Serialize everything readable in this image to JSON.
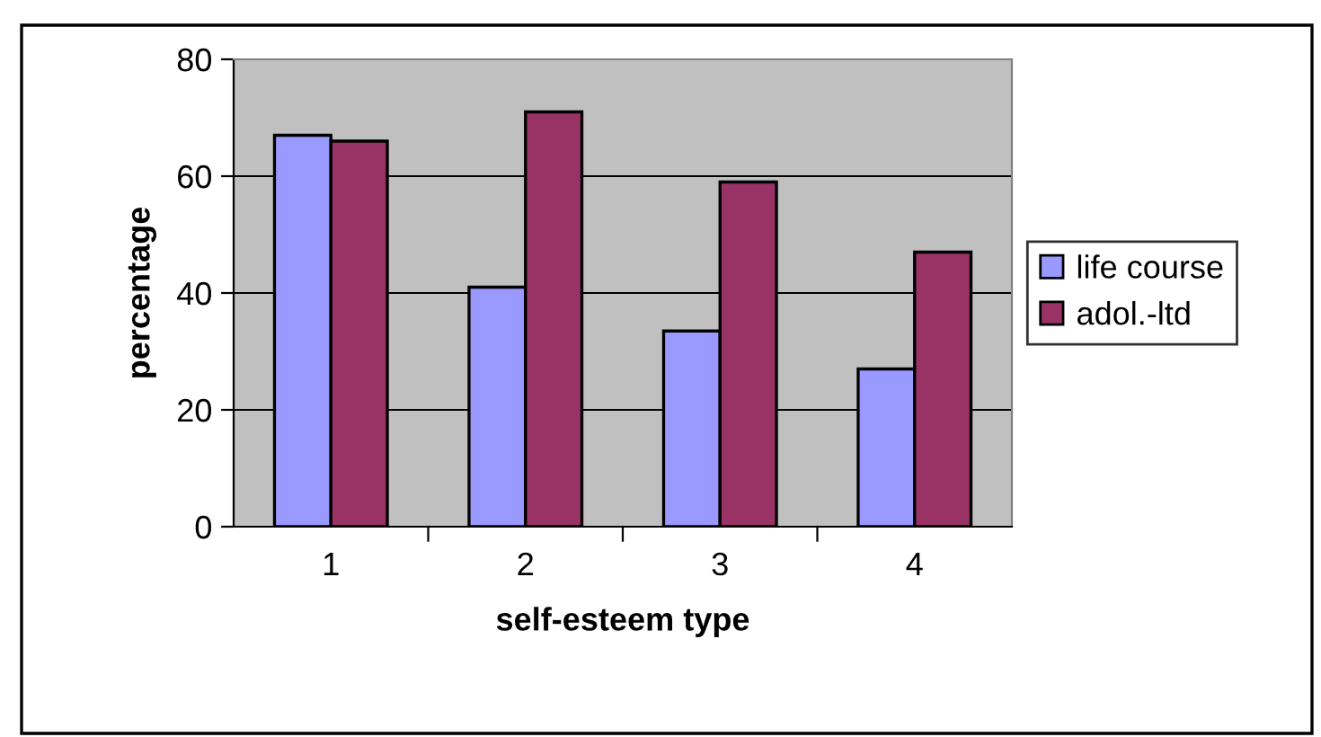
{
  "chart_data": {
    "type": "bar",
    "xlabel": "self-esteem type",
    "ylabel": "percentage",
    "categories": [
      "1",
      "2",
      "3",
      "4"
    ],
    "series": [
      {
        "name": "life course",
        "color": "#9999ff",
        "values": [
          67,
          41,
          33.5,
          27
        ]
      },
      {
        "name": "adol.-ltd",
        "color": "#993366",
        "values": [
          66,
          71,
          59,
          47
        ]
      }
    ],
    "ylim": [
      0,
      80
    ],
    "yticks": [
      0,
      20,
      40,
      60,
      80
    ],
    "grid": "y",
    "legend": "right"
  }
}
